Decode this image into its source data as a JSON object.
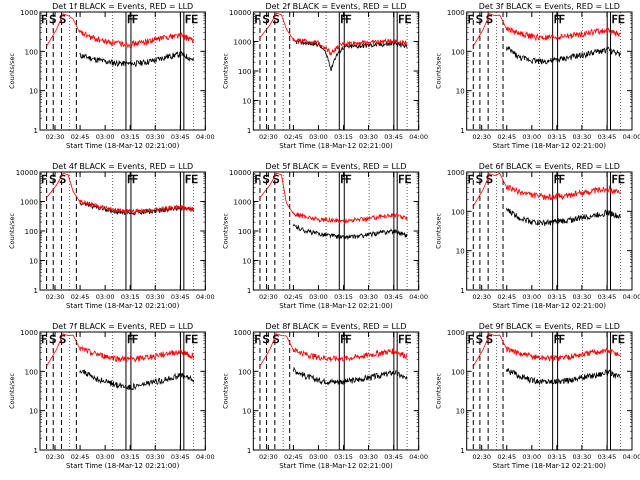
{
  "page": {
    "description_free": true
  },
  "colors": {
    "events": "#000000",
    "lld": "#ff0000",
    "axis": "#000000",
    "background": "#ffffff"
  },
  "chart_data": [
    {
      "type": "line",
      "title": "Det 1f BLACK = Events, RED = LLD",
      "xlabel": "Start Time (18-Mar-12 02:21:00)",
      "ylabel": "Counts/sec",
      "xlim": [
        0,
        99
      ],
      "ylim": [
        1,
        1000
      ],
      "yscale": "log",
      "x_ticks": [
        "02:30",
        "02:45",
        "03:00",
        "03:15",
        "03:30",
        "03:45",
        "04:00"
      ],
      "y_ticks": [
        "1",
        "10",
        "100",
        "1000"
      ],
      "markers": [
        "F",
        "S",
        "S",
        "F",
        "F",
        "FE"
      ],
      "series": [
        {
          "name": "Events",
          "color": "#000000",
          "profile": [
            80,
            65,
            55,
            50,
            48,
            52,
            60,
            75,
            85,
            60
          ]
        },
        {
          "name": "LLD",
          "color": "#ff0000",
          "profile": [
            300,
            220,
            180,
            160,
            150,
            170,
            200,
            240,
            260,
            180
          ]
        }
      ]
    },
    {
      "type": "line",
      "title": "Det 2f BLACK = Events, RED = LLD",
      "xlabel": "Start Time (18-Mar-12 02:21:00)",
      "ylabel": "Counts/sec",
      "xlim": [
        0,
        99
      ],
      "ylim": [
        1,
        10000
      ],
      "yscale": "log",
      "x_ticks": [
        "02:30",
        "02:45",
        "03:00",
        "03:15",
        "03:30",
        "03:45",
        "04:00"
      ],
      "y_ticks": [
        "1",
        "10",
        "100",
        "1000",
        "10000"
      ],
      "markers": [
        "F",
        "S",
        "S",
        "F",
        "F",
        "FE"
      ],
      "series": [
        {
          "name": "Events",
          "color": "#000000",
          "profile": [
            1000,
            900,
            800,
            100,
            650,
            700,
            750,
            800,
            850,
            700
          ]
        },
        {
          "name": "LLD",
          "color": "#ff0000",
          "profile": [
            1200,
            1000,
            900,
            400,
            850,
            900,
            950,
            1000,
            1050,
            900
          ]
        }
      ]
    },
    {
      "type": "line",
      "title": "Det 3f BLACK = Events, RED = LLD",
      "xlabel": "Start Time (18-Mar-12 02:21:00)",
      "ylabel": "Counts/sec",
      "xlim": [
        0,
        99
      ],
      "ylim": [
        1,
        1000
      ],
      "yscale": "log",
      "x_ticks": [
        "02:30",
        "02:45",
        "03:00",
        "03:15",
        "03:30",
        "03:45",
        "04:00"
      ],
      "y_ticks": [
        "1",
        "10",
        "100",
        "1000"
      ],
      "markers": [
        "F",
        "S",
        "S",
        "F",
        "F",
        "FE"
      ],
      "series": [
        {
          "name": "Events",
          "color": "#000000",
          "profile": [
            120,
            70,
            60,
            55,
            60,
            70,
            80,
            95,
            110,
            80
          ]
        },
        {
          "name": "LLD",
          "color": "#ff0000",
          "profile": [
            380,
            290,
            240,
            220,
            230,
            250,
            280,
            320,
            340,
            260
          ]
        }
      ]
    },
    {
      "type": "line",
      "title": "Det 4f BLACK = Events, RED = LLD",
      "xlabel": "Start Time (18-Mar-12 02:21:00)",
      "ylabel": "Counts/sec",
      "xlim": [
        0,
        99
      ],
      "ylim": [
        1,
        10000
      ],
      "yscale": "log",
      "x_ticks": [
        "02:30",
        "02:45",
        "03:00",
        "03:15",
        "03:30",
        "03:45",
        "04:00"
      ],
      "y_ticks": [
        "1",
        "10",
        "100",
        "1000",
        "10000"
      ],
      "markers": [
        "F",
        "S",
        "S",
        "F",
        "F",
        "FE"
      ],
      "series": [
        {
          "name": "Events",
          "color": "#000000",
          "profile": [
            900,
            700,
            550,
            450,
            420,
            430,
            480,
            550,
            600,
            500
          ]
        },
        {
          "name": "LLD",
          "color": "#ff0000",
          "profile": [
            1000,
            750,
            600,
            500,
            460,
            470,
            520,
            600,
            650,
            550
          ]
        }
      ]
    },
    {
      "type": "line",
      "title": "Det 5f BLACK = Events, RED = LLD",
      "xlabel": "Start Time (18-Mar-12 02:21:00)",
      "ylabel": "Counts/sec",
      "xlim": [
        0,
        99
      ],
      "ylim": [
        1,
        10000
      ],
      "yscale": "log",
      "x_ticks": [
        "02:30",
        "02:45",
        "03:00",
        "03:15",
        "03:30",
        "03:45",
        "04:00"
      ],
      "y_ticks": [
        "1",
        "10",
        "100",
        "1000",
        "10000"
      ],
      "markers": [
        "F",
        "S",
        "S",
        "F",
        "F",
        "FE"
      ],
      "series": [
        {
          "name": "Events",
          "color": "#000000",
          "profile": [
            150,
            100,
            80,
            70,
            60,
            65,
            75,
            90,
            100,
            70
          ]
        },
        {
          "name": "LLD",
          "color": "#ff0000",
          "profile": [
            400,
            300,
            250,
            230,
            220,
            240,
            270,
            320,
            350,
            260
          ]
        }
      ]
    },
    {
      "type": "line",
      "title": "Det 6f BLACK = Events, RED = LLD",
      "xlabel": "Start Time (18-Mar-12 02:21:00)",
      "ylabel": "Counts/sec",
      "xlim": [
        0,
        99
      ],
      "ylim": [
        1,
        1000
      ],
      "yscale": "log",
      "x_ticks": [
        "02:30",
        "02:45",
        "03:00",
        "03:15",
        "03:30",
        "03:45",
        "04:00"
      ],
      "y_ticks": [
        "1",
        "10",
        "100",
        "1000"
      ],
      "markers": [
        "F",
        "S",
        "S",
        "F",
        "F",
        "FE"
      ],
      "series": [
        {
          "name": "Events",
          "color": "#000000",
          "profile": [
            110,
            70,
            55,
            50,
            55,
            60,
            70,
            80,
            95,
            70
          ]
        },
        {
          "name": "LLD",
          "color": "#ff0000",
          "profile": [
            420,
            310,
            260,
            230,
            240,
            260,
            300,
            340,
            380,
            280
          ]
        }
      ]
    },
    {
      "type": "line",
      "title": "Det 7f BLACK = Events, RED = LLD",
      "xlabel": "Start Time (18-Mar-12 02:21:00)",
      "ylabel": "Counts/sec",
      "xlim": [
        0,
        99
      ],
      "ylim": [
        1,
        1000
      ],
      "yscale": "log",
      "x_ticks": [
        "02:30",
        "02:45",
        "03:00",
        "03:15",
        "03:30",
        "03:45",
        "04:00"
      ],
      "y_ticks": [
        "1",
        "10",
        "100",
        "1000"
      ],
      "markers": [
        "F",
        "S",
        "S",
        "F",
        "F",
        "FE"
      ],
      "series": [
        {
          "name": "Events",
          "color": "#000000",
          "profile": [
            110,
            70,
            55,
            45,
            40,
            45,
            55,
            65,
            80,
            60
          ]
        },
        {
          "name": "LLD",
          "color": "#ff0000",
          "profile": [
            380,
            290,
            240,
            210,
            200,
            220,
            250,
            290,
            320,
            240
          ]
        }
      ]
    },
    {
      "type": "line",
      "title": "Det 8f BLACK = Events, RED = LLD",
      "xlabel": "Start Time (18-Mar-12 02:21:00)",
      "ylabel": "Counts/sec",
      "xlim": [
        0,
        99
      ],
      "ylim": [
        1,
        1000
      ],
      "yscale": "log",
      "x_ticks": [
        "02:30",
        "02:45",
        "03:00",
        "03:15",
        "03:30",
        "03:45",
        "04:00"
      ],
      "y_ticks": [
        "1",
        "10",
        "100",
        "1000"
      ],
      "markers": [
        "F",
        "S",
        "S",
        "F",
        "F",
        "FE"
      ],
      "series": [
        {
          "name": "Events",
          "color": "#000000",
          "profile": [
            110,
            75,
            60,
            55,
            55,
            60,
            70,
            80,
            95,
            60
          ]
        },
        {
          "name": "LLD",
          "color": "#ff0000",
          "profile": [
            360,
            270,
            230,
            210,
            210,
            230,
            260,
            300,
            330,
            240
          ]
        }
      ]
    },
    {
      "type": "line",
      "title": "Det 9f BLACK = Events, RED = LLD",
      "xlabel": "Start Time (18-Mar-12 02:21:00)",
      "ylabel": "Counts/sec",
      "xlim": [
        0,
        99
      ],
      "ylim": [
        1,
        1000
      ],
      "yscale": "log",
      "x_ticks": [
        "02:30",
        "02:45",
        "03:00",
        "03:15",
        "03:30",
        "03:45",
        "04:00"
      ],
      "y_ticks": [
        "1",
        "10",
        "100",
        "1000"
      ],
      "markers": [
        "F",
        "S",
        "S",
        "F",
        "F",
        "FE"
      ],
      "series": [
        {
          "name": "Events",
          "color": "#000000",
          "profile": [
            110,
            75,
            60,
            55,
            55,
            60,
            70,
            80,
            95,
            70
          ]
        },
        {
          "name": "LLD",
          "color": "#ff0000",
          "profile": [
            380,
            280,
            240,
            220,
            220,
            240,
            270,
            310,
            340,
            260
          ]
        }
      ]
    }
  ]
}
